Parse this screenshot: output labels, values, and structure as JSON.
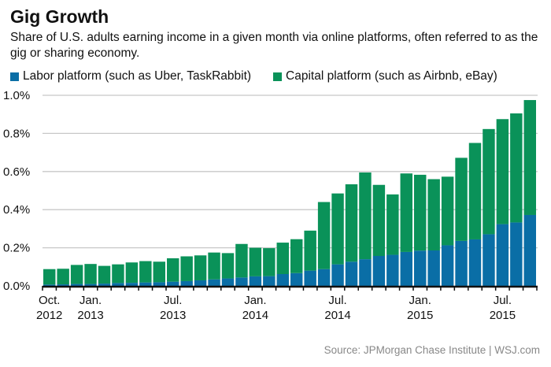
{
  "chart_data": {
    "type": "bar",
    "stacked": true,
    "title": "Gig Growth",
    "subtitle": "Share of U.S. adults earning income in a given month via online platforms, often referred to as the gig or sharing economy.",
    "source": "Source: JPMorgan Chase Institute  |  WSJ.com",
    "xlabel": "",
    "ylabel": "",
    "ylim": [
      0,
      1.0
    ],
    "y_ticks": [
      "0.0%",
      "0.2%",
      "0.4%",
      "0.6%",
      "0.8%",
      "1.0%"
    ],
    "grid": true,
    "legend_position": "top-left",
    "categories": [
      "2012-10",
      "2012-11",
      "2012-12",
      "2013-01",
      "2013-02",
      "2013-03",
      "2013-04",
      "2013-05",
      "2013-06",
      "2013-07",
      "2013-08",
      "2013-09",
      "2013-10",
      "2013-11",
      "2013-12",
      "2014-01",
      "2014-02",
      "2014-03",
      "2014-04",
      "2014-05",
      "2014-06",
      "2014-07",
      "2014-08",
      "2014-09",
      "2014-10",
      "2014-11",
      "2014-12",
      "2015-01",
      "2015-02",
      "2015-03",
      "2015-04",
      "2015-05",
      "2015-06",
      "2015-07",
      "2015-08",
      "2015-09"
    ],
    "x_tick_labels": [
      {
        "index": 0,
        "line1": "Oct.",
        "line2": "2012"
      },
      {
        "index": 3,
        "line1": "Jan.",
        "line2": "2013"
      },
      {
        "index": 9,
        "line1": "Jul.",
        "line2": "2013"
      },
      {
        "index": 15,
        "line1": "Jan.",
        "line2": "2014"
      },
      {
        "index": 21,
        "line1": "Jul.",
        "line2": "2014"
      },
      {
        "index": 27,
        "line1": "Jan.",
        "line2": "2015"
      },
      {
        "index": 33,
        "line1": "Jul.",
        "line2": "2015"
      }
    ],
    "series": [
      {
        "name": "Labor platform (such as Uber, TaskRabbit)",
        "color": "#0a6ea6",
        "values": [
          0.007,
          0.008,
          0.01,
          0.01,
          0.012,
          0.015,
          0.016,
          0.018,
          0.019,
          0.022,
          0.025,
          0.029,
          0.034,
          0.039,
          0.044,
          0.05,
          0.051,
          0.062,
          0.067,
          0.08,
          0.088,
          0.113,
          0.127,
          0.14,
          0.157,
          0.163,
          0.178,
          0.185,
          0.186,
          0.213,
          0.236,
          0.244,
          0.271,
          0.324,
          0.333,
          0.372
        ]
      },
      {
        "name": "Capital platform (such as Airbnb, eBay)",
        "color": "#0a9259",
        "values": [
          0.081,
          0.082,
          0.1,
          0.105,
          0.093,
          0.098,
          0.107,
          0.112,
          0.108,
          0.123,
          0.13,
          0.131,
          0.141,
          0.133,
          0.176,
          0.15,
          0.147,
          0.165,
          0.178,
          0.21,
          0.352,
          0.372,
          0.406,
          0.455,
          0.373,
          0.317,
          0.412,
          0.398,
          0.374,
          0.36,
          0.436,
          0.506,
          0.552,
          0.551,
          0.572,
          0.603
        ]
      }
    ]
  }
}
